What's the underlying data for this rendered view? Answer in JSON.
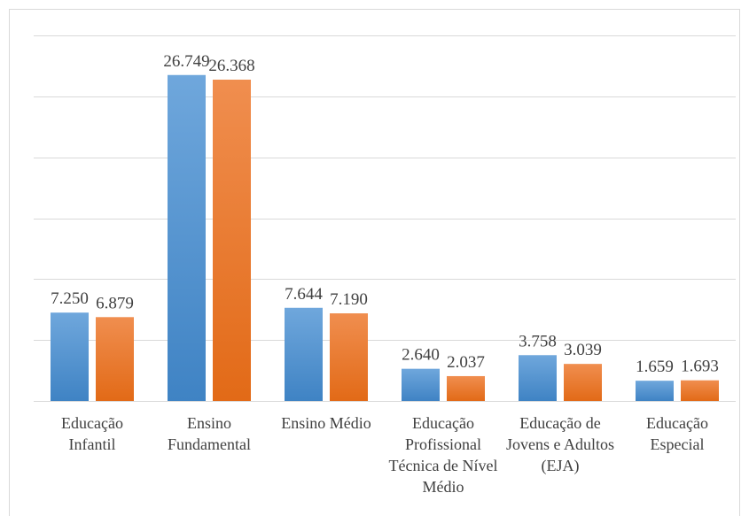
{
  "chart_data": {
    "type": "bar",
    "categories": [
      "Educação Infantil",
      "Ensino Fundamental",
      "Ensino Médio",
      "Educação Profissional Técnica de Nível Médio",
      "Educação de Jovens e Adultos (EJA)",
      "Educação Especial"
    ],
    "series": [
      {
        "color": "#5b9bd5",
        "values": [
          7250,
          26749,
          7644,
          2640,
          3758,
          1659
        ],
        "value_labels": [
          "7.250",
          "26.749",
          "7.644",
          "2.640",
          "3.758",
          "1.659"
        ]
      },
      {
        "color": "#ed7d31",
        "values": [
          6879,
          26368,
          7190,
          2037,
          3039,
          1693
        ],
        "value_labels": [
          "6.879",
          "26.368",
          "7.190",
          "2.037",
          "3.039",
          "1.693"
        ]
      }
    ],
    "ylim": [
      0,
      30000
    ],
    "yticks": [
      0,
      5000,
      10000,
      15000,
      20000,
      25000,
      30000
    ],
    "grid": true
  }
}
